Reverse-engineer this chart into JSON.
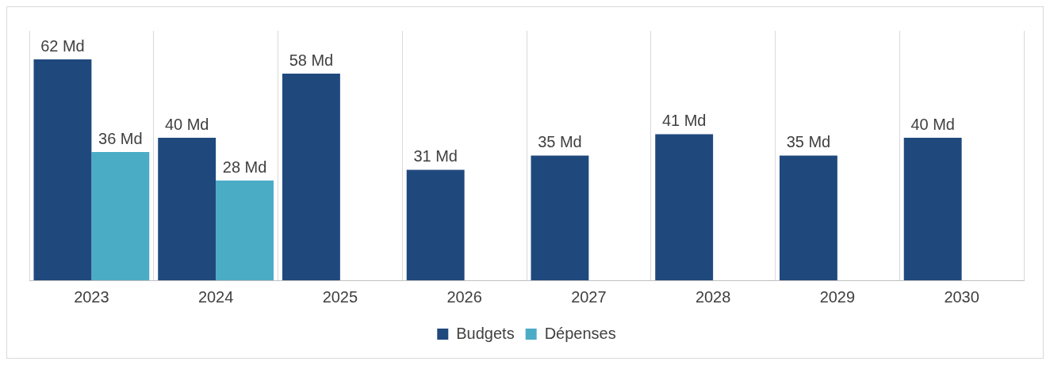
{
  "chart_data": {
    "type": "bar",
    "categories": [
      "2023",
      "2024",
      "2025",
      "2026",
      "2027",
      "2028",
      "2029",
      "2030"
    ],
    "series": [
      {
        "name": "Budgets",
        "color": "#1f497d",
        "values": [
          62,
          40,
          58,
          31,
          35,
          41,
          35,
          40
        ],
        "value_labels": [
          "62 Md",
          "40 Md",
          "58 Md",
          "31 Md",
          "35 Md",
          "41 Md",
          "35 Md",
          "40 Md"
        ]
      },
      {
        "name": "Dépenses",
        "color": "#4bacc6",
        "values": [
          36,
          28,
          null,
          null,
          null,
          null,
          null,
          null
        ],
        "value_labels": [
          "36 Md",
          "28 Md",
          null,
          null,
          null,
          null,
          null,
          null
        ]
      }
    ],
    "grid": "x",
    "legend": "bottom"
  }
}
